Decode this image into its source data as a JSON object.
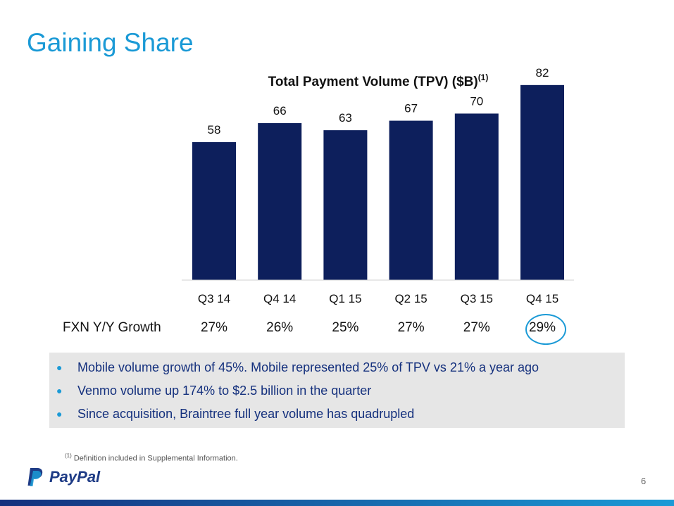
{
  "slide": {
    "title": "Gaining Share",
    "page_number": "6",
    "footnote_marker": "(1)",
    "footnote_text": "Definition included in Supplemental Information.",
    "logo_text": "PayPal"
  },
  "growth": {
    "label": "FXN Y/Y Growth",
    "values": [
      "27%",
      "26%",
      "25%",
      "27%",
      "27%",
      "29%"
    ]
  },
  "bullets": [
    "Mobile volume growth of 45%. Mobile represented 25% of TPV vs 21% a year ago",
    "Venmo volume up 174% to $2.5 billion in the quarter",
    "Since acquisition, Braintree full year volume has quadrupled"
  ],
  "colors": {
    "bar": "#0d1f5c",
    "title": "#1b9ad6",
    "bullet_text": "#14307d",
    "highlight": "#1b9ad6"
  },
  "chart_data": {
    "type": "bar",
    "title": "Total Payment Volume (TPV) ($B)",
    "title_superscript": "(1)",
    "categories": [
      "Q3 14",
      "Q4 14",
      "Q1 15",
      "Q2 15",
      "Q3 15",
      "Q4 15"
    ],
    "values": [
      58,
      66,
      63,
      67,
      70,
      82
    ],
    "xlabel": "",
    "ylabel": "",
    "ylim": [
      0,
      100
    ],
    "grid": false,
    "legend": "none"
  }
}
